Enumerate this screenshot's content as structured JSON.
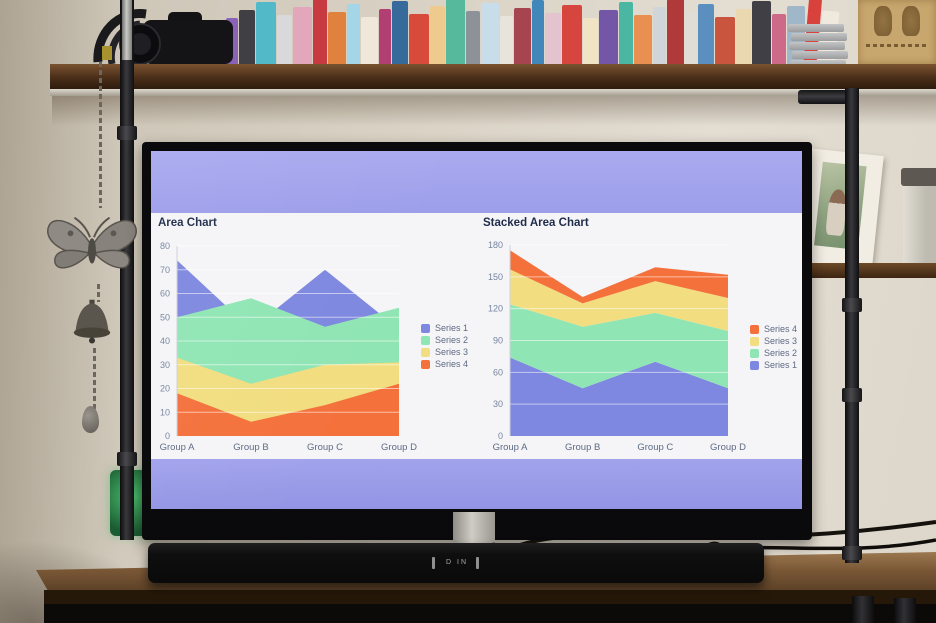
{
  "palette": {
    "screen_band": "#a9aaef",
    "panel": "#f5f5f8",
    "title_text": "#1e2b49",
    "tick_text": "#76849e",
    "label_text": "#5e6a82",
    "gridline": "rgba(255,255,255,0.55)"
  },
  "chart_data": [
    {
      "type": "area",
      "variant": "overlay",
      "title": "Area Chart",
      "categories": [
        "Group A",
        "Group B",
        "Group C",
        "Group D"
      ],
      "series": [
        {
          "name": "Series 1",
          "color": "#7e88e0",
          "values": [
            74,
            45,
            70,
            45
          ]
        },
        {
          "name": "Series 2",
          "color": "#90e5b4",
          "values": [
            50,
            58,
            46,
            54
          ]
        },
        {
          "name": "Series 3",
          "color": "#f2dd80",
          "values": [
            33,
            22,
            30,
            31
          ]
        },
        {
          "name": "Series 4",
          "color": "#f4713c",
          "values": [
            18,
            6,
            13,
            22
          ]
        }
      ],
      "xlabel": "",
      "ylabel": "",
      "ylim": [
        0,
        80
      ],
      "yticks": [
        0,
        10,
        20,
        30,
        40,
        50,
        60,
        70,
        80
      ],
      "grid": true,
      "legend_position": "right",
      "legend_order": [
        0,
        1,
        2,
        3
      ]
    },
    {
      "type": "area",
      "variant": "stacked",
      "title": "Stacked Area Chart",
      "categories": [
        "Group A",
        "Group B",
        "Group C",
        "Group D"
      ],
      "series": [
        {
          "name": "Series 1",
          "color": "#7e88e0",
          "values": [
            74,
            45,
            70,
            45
          ]
        },
        {
          "name": "Series 2",
          "color": "#90e5b4",
          "values": [
            50,
            58,
            46,
            54
          ]
        },
        {
          "name": "Series 3",
          "color": "#f2dd80",
          "values": [
            33,
            22,
            30,
            31
          ]
        },
        {
          "name": "Series 4",
          "color": "#f4713c",
          "values": [
            18,
            6,
            13,
            22
          ]
        }
      ],
      "xlabel": "",
      "ylabel": "",
      "ylim": [
        0,
        180
      ],
      "yticks": [
        0,
        30,
        60,
        90,
        120,
        150,
        180
      ],
      "grid": true,
      "legend_position": "right",
      "legend_order": [
        3,
        2,
        1,
        0
      ]
    }
  ],
  "soundbar": {
    "logo_text": "D IN"
  },
  "bookshelf": {
    "spine_colors": [
      "#8a63b8",
      "#403f44",
      "#52b9c9",
      "#d9d9dc",
      "#e2a7bb",
      "#c63a40",
      "#e0823d",
      "#a5d6e8",
      "#efe8da",
      "#b23f72",
      "#356a9a",
      "#d84a3a",
      "#efca8e",
      "#57b99b",
      "#8d9298",
      "#c7dde9",
      "#e8e4dc",
      "#a64550",
      "#4187ba",
      "#e3c4ce",
      "#d6453e",
      "#f0e4c4",
      "#7456a6",
      "#4bb6a2",
      "#e98f52",
      "#d0d5d9",
      "#b03a3a",
      "#e0ddd6",
      "#5b8fc0",
      "#c9553f",
      "#ead8b0",
      "#3f3f45",
      "#cd6a8a",
      "#9fb7c9",
      "#d8413c",
      "#efeadd"
    ]
  }
}
